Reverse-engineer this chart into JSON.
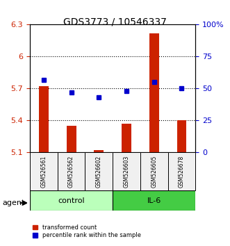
{
  "title": "GDS3773 / 10546337",
  "samples": [
    "GSM526561",
    "GSM526562",
    "GSM526602",
    "GSM526603",
    "GSM526605",
    "GSM526678"
  ],
  "groups": [
    "control",
    "control",
    "control",
    "IL-6",
    "IL-6",
    "IL-6"
  ],
  "bar_values": [
    5.72,
    5.35,
    5.12,
    5.37,
    6.22,
    5.4
  ],
  "dot_values": [
    57,
    47,
    43,
    48,
    55,
    50
  ],
  "bar_bottom": 5.1,
  "ylim_left": [
    5.1,
    6.3
  ],
  "ylim_right": [
    0,
    100
  ],
  "yticks_left": [
    5.1,
    5.4,
    5.7,
    6.0,
    6.3
  ],
  "yticks_right": [
    0,
    25,
    50,
    75,
    100
  ],
  "ytick_labels_left": [
    "5.1",
    "5.4",
    "5.7",
    "6",
    "6.3"
  ],
  "ytick_labels_right": [
    "0",
    "25",
    "50",
    "75",
    "100%"
  ],
  "hlines": [
    5.7,
    6.0,
    5.4
  ],
  "bar_color": "#cc2200",
  "dot_color": "#0000cc",
  "control_color": "#bbffbb",
  "il6_color": "#44cc44",
  "group_label_control": "control",
  "group_label_il6": "IL-6",
  "agent_label": "agent",
  "legend_bar": "transformed count",
  "legend_dot": "percentile rank within the sample",
  "bg_color": "#f0f0f0"
}
